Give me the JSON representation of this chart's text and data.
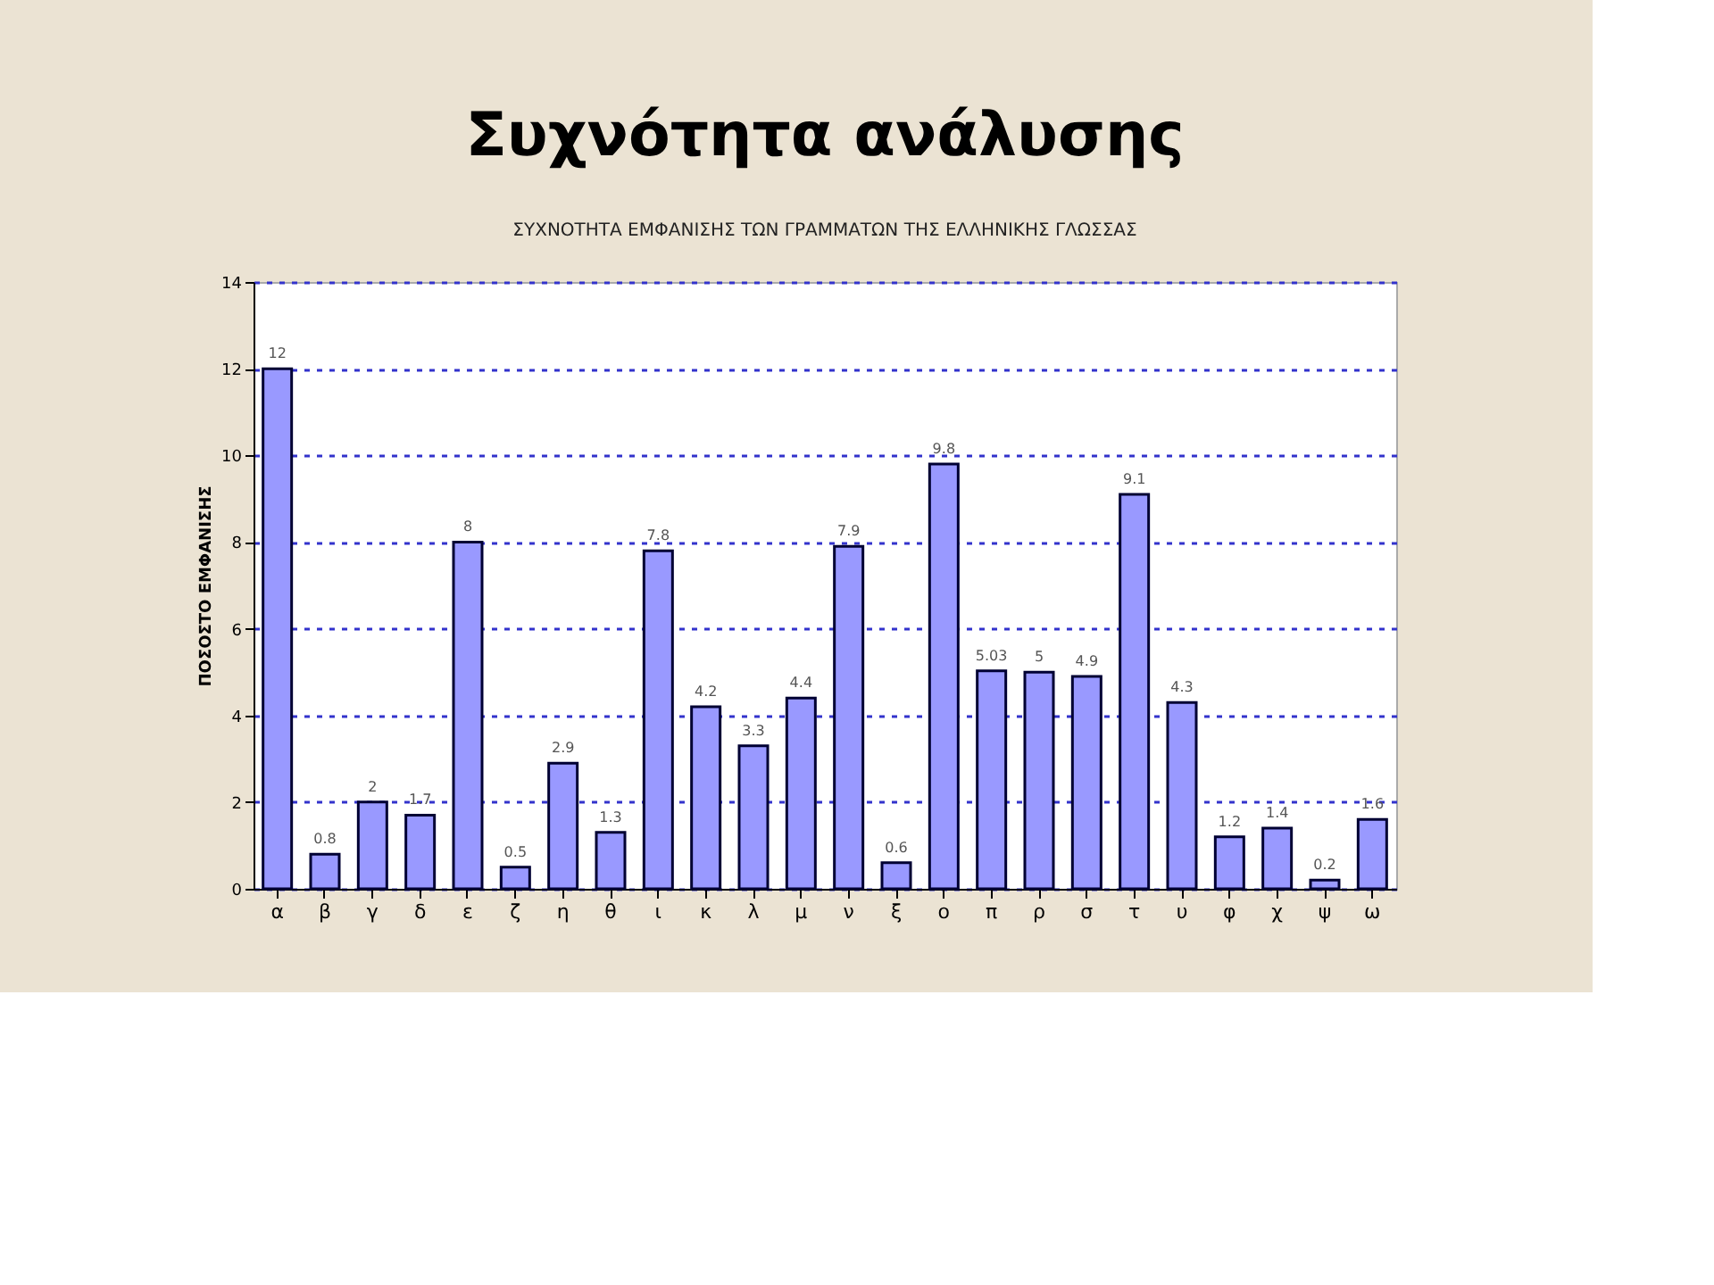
{
  "chart_data": {
    "type": "bar",
    "title": "Συχνότητα ανάλυσης",
    "subtitle": "ΣΥΧΝΟΤΗΤΑ ΕΜΦΑΝΙΣΗΣ ΤΩΝ ΓΡΑΜΜΑΤΩΝ ΤΗΣ ΕΛΛΗΝΙΚΗΣ ΓΛΩΣΣΑΣ",
    "ylabel": "ΠΟΣΟΣΤΟ ΕΜΦΑΝΙΣΗΣ",
    "categories": [
      "α",
      "β",
      "γ",
      "δ",
      "ε",
      "ζ",
      "η",
      "θ",
      "ι",
      "κ",
      "λ",
      "μ",
      "ν",
      "ξ",
      "ο",
      "π",
      "ρ",
      "σ",
      "τ",
      "υ",
      "φ",
      "χ",
      "ψ",
      "ω"
    ],
    "values": [
      12,
      0.8,
      2,
      1.7,
      8,
      0.5,
      2.9,
      1.3,
      7.8,
      4.2,
      3.3,
      4.4,
      7.9,
      0.6,
      9.8,
      5.03,
      5,
      4.9,
      9.1,
      4.3,
      1.2,
      1.4,
      0.2,
      1.6
    ],
    "color": "#9999ff",
    "ylim": [
      0,
      14
    ],
    "yticks": [
      0,
      2,
      4,
      6,
      8,
      10,
      12,
      14
    ],
    "grid": "y",
    "data_labels": true
  }
}
